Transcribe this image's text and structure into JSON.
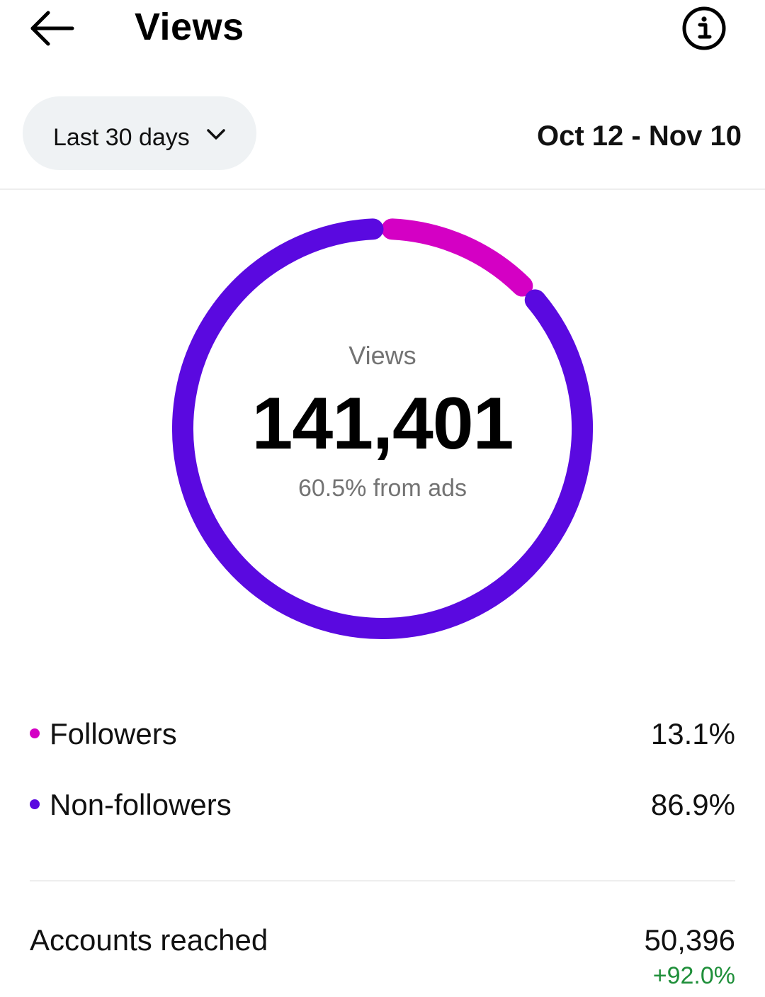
{
  "header": {
    "title": "Views",
    "back_icon": "arrow-left-icon",
    "info_icon": "info-circle-icon"
  },
  "filters": {
    "range_label": "Last 30 days",
    "range_icon": "chevron-down-icon",
    "date_range": "Oct 12 - Nov 10"
  },
  "summary": {
    "label": "Views",
    "total": "141,401",
    "ads_note": "60.5% from ads"
  },
  "chart_data": {
    "type": "pie",
    "categories": [
      "Followers",
      "Non-followers"
    ],
    "values": [
      13.1,
      86.9
    ],
    "colors": [
      "#d400c4",
      "#5a09e0"
    ]
  },
  "legend": [
    {
      "label": "Followers",
      "value": "13.1%",
      "color": "#d400c4"
    },
    {
      "label": "Non-followers",
      "value": "86.9%",
      "color": "#5a09e0"
    }
  ],
  "accounts_reached": {
    "label": "Accounts reached",
    "value": "50,396",
    "change": "+92.0%",
    "change_color": "#1f8f3a"
  }
}
